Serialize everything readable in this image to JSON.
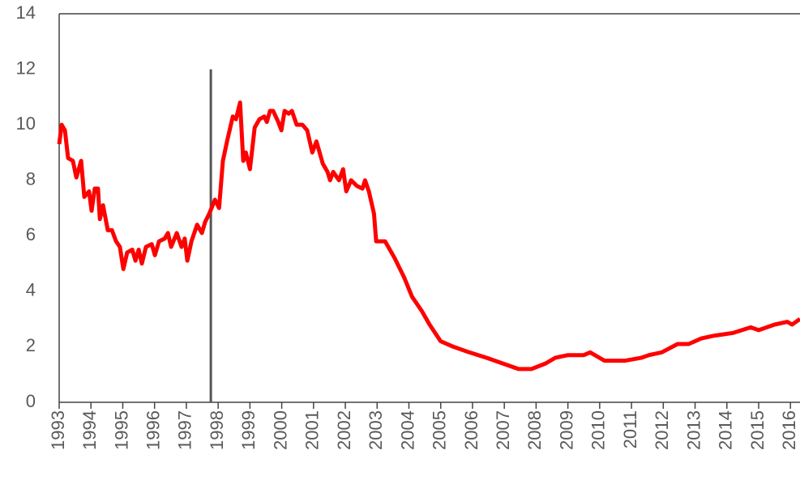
{
  "chart_data": {
    "type": "line",
    "x": [
      1993.0,
      1993.08,
      1993.18,
      1993.28,
      1993.43,
      1993.54,
      1993.69,
      1993.79,
      1993.94,
      1994.02,
      1994.12,
      1994.22,
      1994.28,
      1994.38,
      1994.53,
      1994.66,
      1994.79,
      1994.91,
      1995.02,
      1995.14,
      1995.3,
      1995.4,
      1995.5,
      1995.6,
      1995.73,
      1995.91,
      1996.01,
      1996.14,
      1996.32,
      1996.42,
      1996.52,
      1996.7,
      1996.85,
      1996.95,
      1997.03,
      1997.16,
      1997.34,
      1997.49,
      1997.59,
      1997.72,
      1997.9,
      1998.03,
      1998.15,
      1998.28,
      1998.46,
      1998.56,
      1998.69,
      1998.79,
      1998.87,
      1999.0,
      1999.15,
      1999.3,
      1999.45,
      1999.53,
      1999.63,
      1999.73,
      1999.89,
      1999.99,
      2000.09,
      2000.22,
      2000.32,
      2000.47,
      2000.65,
      2000.8,
      2000.96,
      2001.09,
      2001.29,
      2001.44,
      2001.52,
      2001.62,
      2001.8,
      2001.93,
      2002.03,
      2002.18,
      2002.36,
      2002.54,
      2002.62,
      2002.74,
      2002.9,
      2002.97,
      2003.25,
      2003.55,
      2003.85,
      2004.1,
      2004.4,
      2004.65,
      2005.0,
      2005.4,
      2005.9,
      2006.45,
      2006.95,
      2007.45,
      2007.85,
      2008.3,
      2008.6,
      2009.0,
      2009.5,
      2009.7,
      2010.15,
      2010.8,
      2011.3,
      2011.55,
      2011.95,
      2012.45,
      2012.8,
      2013.2,
      2013.6,
      2014.2,
      2014.75,
      2015.0,
      2015.5,
      2015.9,
      2016.05,
      2016.3
    ],
    "series": [
      {
        "name": "rate",
        "color": "#ff0000",
        "values": [
          9.3,
          10.0,
          9.8,
          8.8,
          8.7,
          8.1,
          8.7,
          7.4,
          7.6,
          6.9,
          7.7,
          7.7,
          6.6,
          7.1,
          6.2,
          6.2,
          5.8,
          5.6,
          4.8,
          5.4,
          5.5,
          5.1,
          5.5,
          5.0,
          5.6,
          5.7,
          5.3,
          5.8,
          5.9,
          6.1,
          5.6,
          6.1,
          5.6,
          5.9,
          5.1,
          5.8,
          6.4,
          6.1,
          6.5,
          6.8,
          7.3,
          7.0,
          8.7,
          9.4,
          10.3,
          10.2,
          10.8,
          8.7,
          9.0,
          8.4,
          9.9,
          10.2,
          10.3,
          10.1,
          10.5,
          10.5,
          10.1,
          9.8,
          10.5,
          10.4,
          10.5,
          10.0,
          10.0,
          9.8,
          9.0,
          9.4,
          8.6,
          8.3,
          8.0,
          8.3,
          8.0,
          8.4,
          7.6,
          8.0,
          7.8,
          7.7,
          8.0,
          7.6,
          6.8,
          5.8,
          5.8,
          5.2,
          4.5,
          3.8,
          3.3,
          2.8,
          2.2,
          2.0,
          1.8,
          1.6,
          1.4,
          1.2,
          1.2,
          1.4,
          1.6,
          1.7,
          1.7,
          1.8,
          1.5,
          1.5,
          1.6,
          1.7,
          1.8,
          2.1,
          2.1,
          2.3,
          2.4,
          2.5,
          2.7,
          2.6,
          2.8,
          2.9,
          2.8,
          3.0
        ]
      }
    ],
    "vline": {
      "x": 1997.77,
      "y": [
        0,
        12
      ]
    },
    "xlim": [
      1993,
      2016.3
    ],
    "xticks": [
      1993,
      1994,
      1995,
      1996,
      1997,
      1998,
      1999,
      2000,
      2001,
      2002,
      2003,
      2004,
      2005,
      2006,
      2007,
      2008,
      2009,
      2010,
      2011,
      2012,
      2013,
      2014,
      2015,
      2016
    ],
    "ylim": [
      0,
      14
    ],
    "yticks": [
      0,
      2,
      4,
      6,
      8,
      10,
      12,
      14
    ],
    "grid": false
  }
}
